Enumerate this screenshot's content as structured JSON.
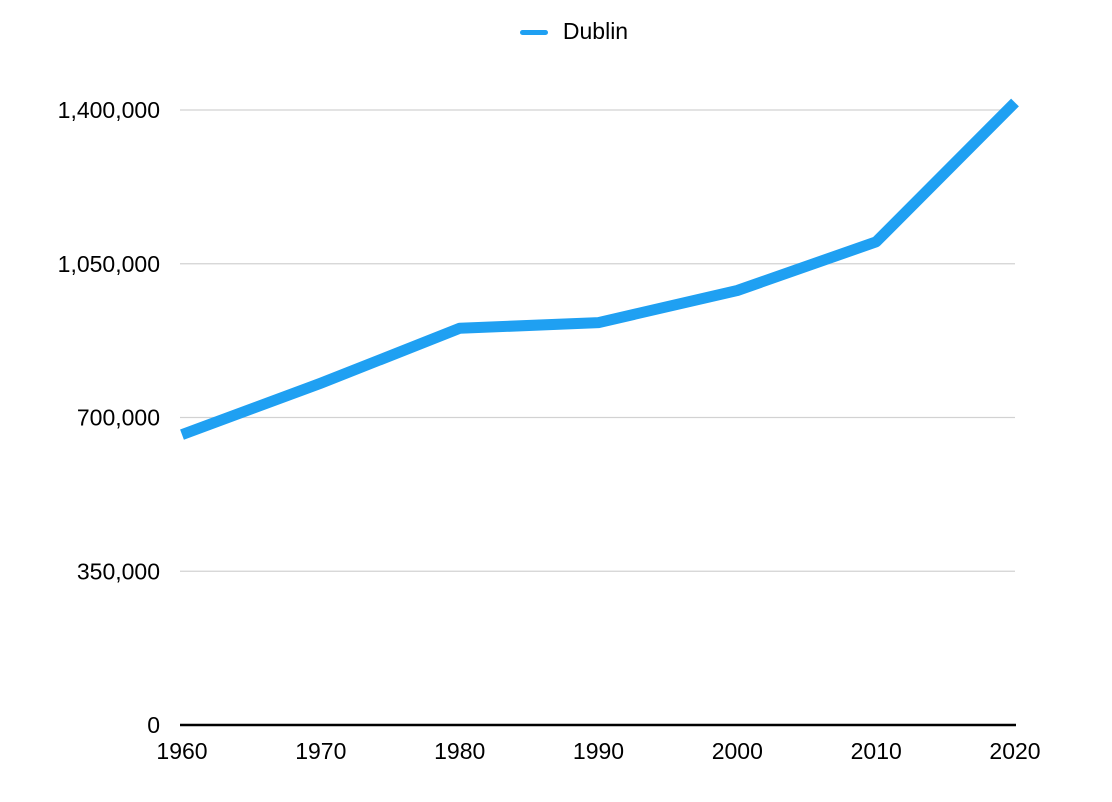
{
  "chart_data": {
    "type": "line",
    "title": "",
    "xlabel": "",
    "ylabel": "",
    "x": [
      1960,
      1970,
      1980,
      1990,
      2000,
      2010,
      2020
    ],
    "x_tick_labels": [
      "1960",
      "1970",
      "1980",
      "1990",
      "2000",
      "2010",
      "2020"
    ],
    "series": [
      {
        "name": "Dublin",
        "color": "#1fa0f2",
        "values": [
          661000,
          778000,
          903000,
          916000,
          989000,
          1100000,
          1417000
        ]
      }
    ],
    "ylim": [
      0,
      1400000
    ],
    "y_ticks": [
      {
        "value": 0,
        "label": "0"
      },
      {
        "value": 350000,
        "label": "350,000"
      },
      {
        "value": 700000,
        "label": "700,000"
      },
      {
        "value": 1050000,
        "label": "1,050,000"
      },
      {
        "value": 1400000,
        "label": "1,400,000"
      }
    ],
    "grid": "horizontal-only",
    "legend_position": "top-center",
    "gridline_color": "#d2d2d2",
    "axis_color": "#000000",
    "text_color": "#000000",
    "background_color": "#ffffff"
  }
}
